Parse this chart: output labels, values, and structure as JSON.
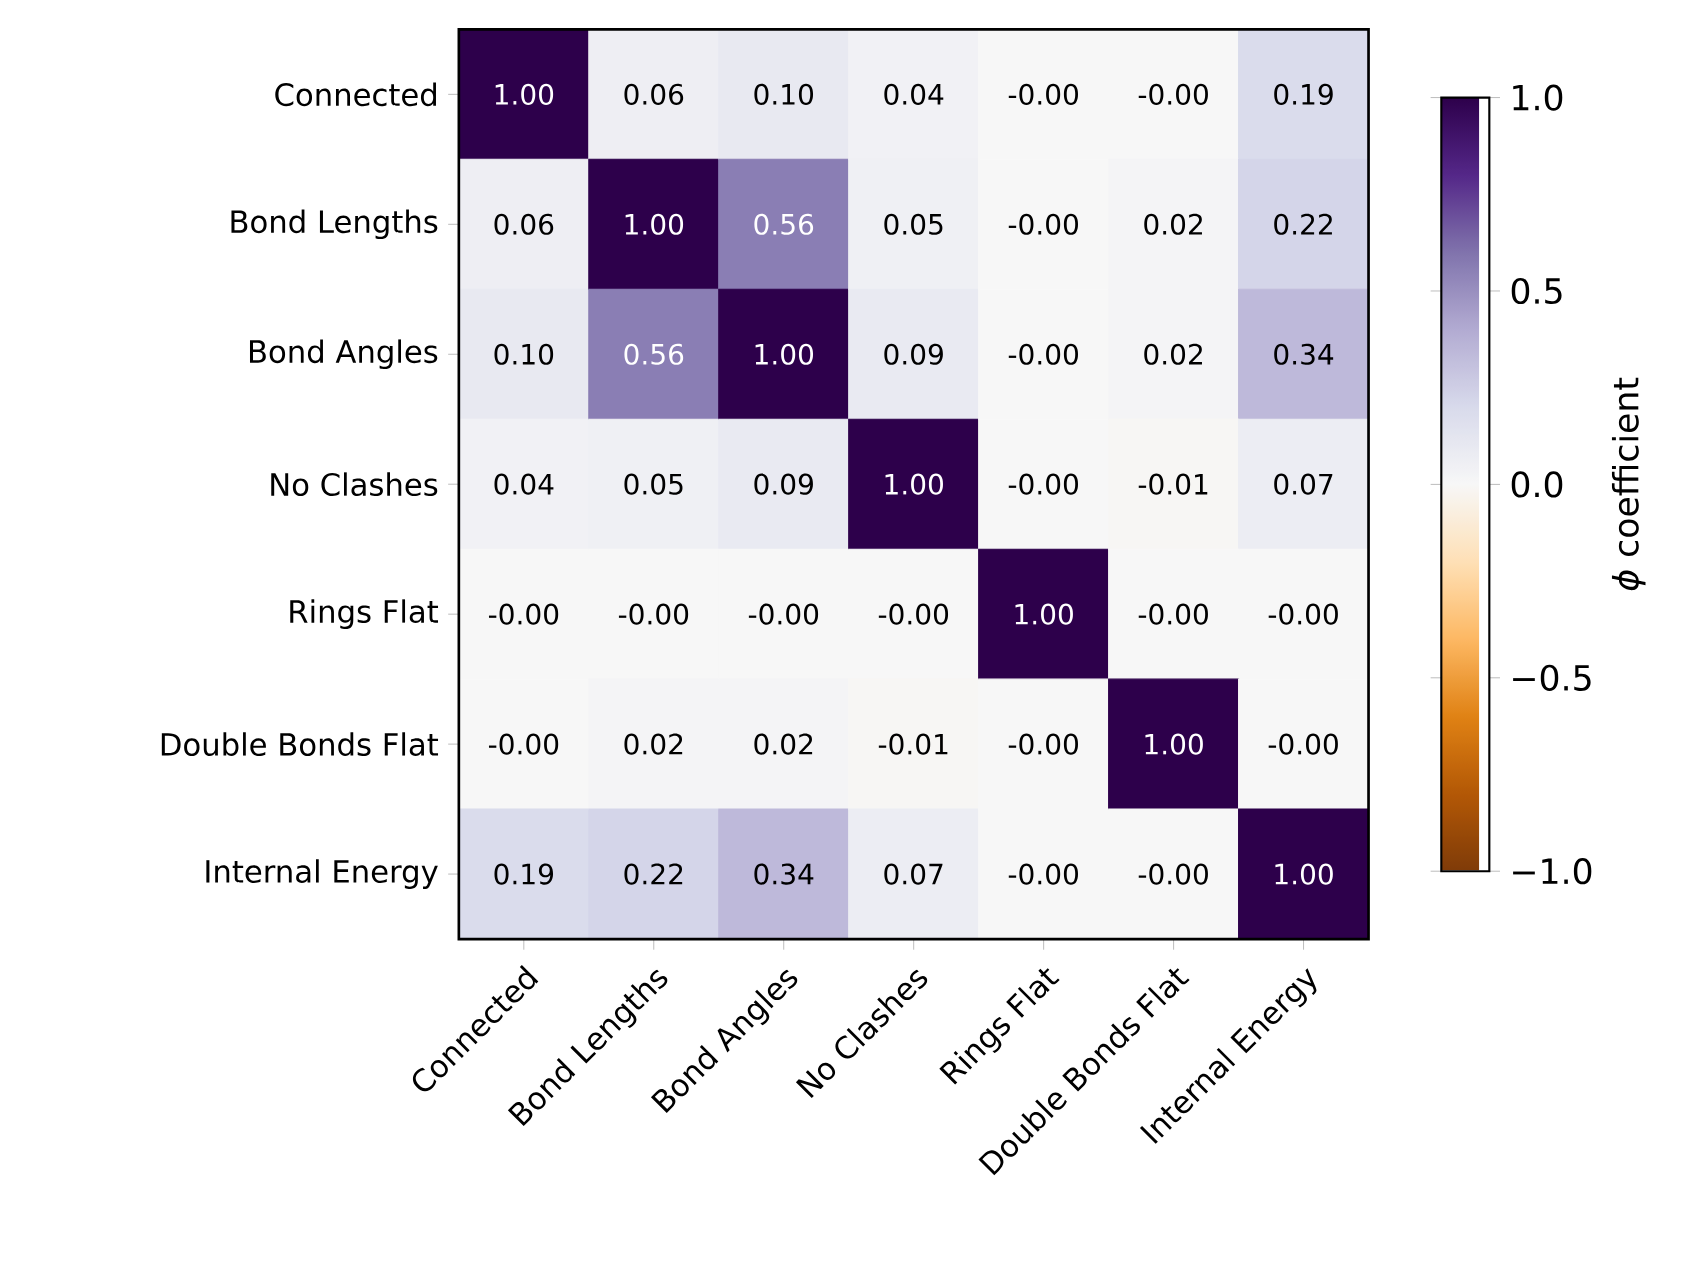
{
  "chart_data": {
    "type": "heatmap",
    "categories": [
      "Connected",
      "Bond Lengths",
      "Bond Angles",
      "No Clashes",
      "Rings Flat",
      "Double Bonds Flat",
      "Internal Energy"
    ],
    "y_categories": [
      "Connected",
      "Bond Lengths",
      "Bond Angles",
      "No Clashes",
      "Rings Flat",
      "Double Bonds Flat",
      "Internal Energy"
    ],
    "cells": [
      [
        1.0,
        0.06,
        0.1,
        0.04,
        -0.0,
        -0.0,
        0.19
      ],
      [
        0.06,
        1.0,
        0.56,
        0.05,
        -0.0,
        0.02,
        0.22
      ],
      [
        0.1,
        0.56,
        1.0,
        0.09,
        -0.0,
        0.02,
        0.34
      ],
      [
        0.04,
        0.05,
        0.09,
        1.0,
        -0.0,
        -0.01,
        0.07
      ],
      [
        -0.0,
        -0.0,
        -0.0,
        -0.0,
        1.0,
        -0.0,
        -0.0
      ],
      [
        -0.0,
        0.02,
        0.02,
        -0.01,
        -0.0,
        1.0,
        -0.0
      ],
      [
        0.19,
        0.22,
        0.34,
        0.07,
        -0.0,
        -0.0,
        1.0
      ]
    ],
    "cell_labels": [
      [
        "1.00",
        "0.06",
        "0.10",
        "0.04",
        "-0.00",
        "-0.00",
        "0.19"
      ],
      [
        "0.06",
        "1.00",
        "0.56",
        "0.05",
        "-0.00",
        "0.02",
        "0.22"
      ],
      [
        "0.10",
        "0.56",
        "1.00",
        "0.09",
        "-0.00",
        "0.02",
        "0.34"
      ],
      [
        "0.04",
        "0.05",
        "0.09",
        "1.00",
        "-0.00",
        "-0.01",
        "0.07"
      ],
      [
        "-0.00",
        "-0.00",
        "-0.00",
        "-0.00",
        "1.00",
        "-0.00",
        "-0.00"
      ],
      [
        "-0.00",
        "0.02",
        "0.02",
        "-0.01",
        "-0.00",
        "1.00",
        "-0.00"
      ],
      [
        "0.19",
        "0.22",
        "0.34",
        "0.07",
        "-0.00",
        "-0.00",
        "1.00"
      ]
    ],
    "clabel": "*ϕ* coefficient",
    "clim": [
      -1,
      1
    ],
    "cticks": [
      {
        "value": -1,
        "label": "−1.0"
      },
      {
        "value": -0.5,
        "label": "−0.5"
      },
      {
        "value": 0,
        "label": "0.0"
      },
      {
        "value": 0.5,
        "label": "0.5"
      },
      {
        "value": 1,
        "label": "1.0"
      }
    ]
  }
}
